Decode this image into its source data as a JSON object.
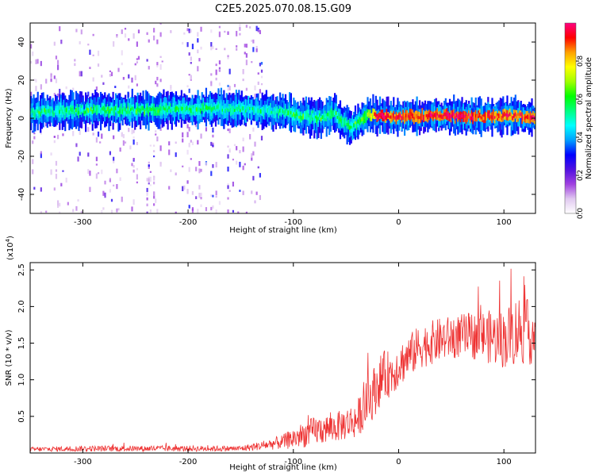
{
  "title": "C2E5.2025.070.08.15.G09",
  "chart_data": [
    {
      "type": "heatmap",
      "title": "C2E5.2025.070.08.15.G09",
      "xlabel": "Height of straight line (km)",
      "ylabel": "Frequency (Hz)",
      "xlim": [
        -350,
        130
      ],
      "ylim": [
        -50,
        50
      ],
      "x_ticks": [
        -300,
        -200,
        -100,
        0,
        100
      ],
      "y_ticks": [
        -40,
        -20,
        0,
        20,
        40
      ],
      "colorbar": {
        "label": "Normalized spectral amplitude",
        "range": [
          0,
          1
        ],
        "ticks": [
          "0.0",
          "0.2",
          "0.4",
          "0.6",
          "0.8"
        ],
        "colors": [
          "#ffffff",
          "#e0c8f0",
          "#a040e0",
          "#5010e0",
          "#0000ff",
          "#00a0ff",
          "#00ffff",
          "#00ff80",
          "#00ff00",
          "#a0ff00",
          "#ffff00",
          "#ffa000",
          "#ff0000",
          "#ff0080"
        ]
      },
      "ridge": {
        "description_points": [
          {
            "x": -350,
            "freq": 3,
            "amp": 0.45
          },
          {
            "x": -300,
            "freq": 4,
            "amp": 0.5
          },
          {
            "x": -250,
            "freq": 4,
            "amp": 0.5
          },
          {
            "x": -200,
            "freq": 5,
            "amp": 0.5
          },
          {
            "x": -150,
            "freq": 5,
            "amp": 0.45
          },
          {
            "x": -120,
            "freq": 4,
            "amp": 0.45
          },
          {
            "x": -100,
            "freq": 2,
            "amp": 0.5
          },
          {
            "x": -80,
            "freq": 0,
            "amp": 0.5
          },
          {
            "x": -60,
            "freq": 2,
            "amp": 0.5
          },
          {
            "x": -45,
            "freq": -5,
            "amp": 0.5
          },
          {
            "x": -30,
            "freq": 2,
            "amp": 0.6
          },
          {
            "x": -20,
            "freq": 1,
            "amp": 0.9
          },
          {
            "x": 0,
            "freq": 1,
            "amp": 0.85
          },
          {
            "x": 50,
            "freq": 1,
            "amp": 0.9
          },
          {
            "x": 100,
            "freq": 1,
            "amp": 0.85
          },
          {
            "x": 130,
            "freq": 1,
            "amp": 0.85
          }
        ],
        "noise_region_x": [
          -350,
          -130
        ]
      }
    },
    {
      "type": "line",
      "xlabel": "Height of straight line (km)",
      "ylabel": "SNR (10 * v/v)",
      "scale_label": "(x10",
      "scale_exponent": "4",
      "scale_suffix": ")",
      "xlim": [
        -350,
        130
      ],
      "ylim": [
        0,
        2.6
      ],
      "x_ticks": [
        -300,
        -200,
        -100,
        0,
        100
      ],
      "y_ticks": [
        "0.5",
        "1.0",
        "1.5",
        "2.0",
        "2.5"
      ],
      "color": "#ee3333",
      "series": [
        {
          "envelope": [
            {
              "x": -350,
              "mean": 0.05,
              "spread": 0.03
            },
            {
              "x": -300,
              "mean": 0.06,
              "spread": 0.04
            },
            {
              "x": -200,
              "mean": 0.06,
              "spread": 0.04
            },
            {
              "x": -150,
              "mean": 0.06,
              "spread": 0.04
            },
            {
              "x": -130,
              "mean": 0.1,
              "spread": 0.06
            },
            {
              "x": -110,
              "mean": 0.15,
              "spread": 0.1
            },
            {
              "x": -100,
              "mean": 0.2,
              "spread": 0.15
            },
            {
              "x": -80,
              "mean": 0.3,
              "spread": 0.2
            },
            {
              "x": -60,
              "mean": 0.35,
              "spread": 0.2
            },
            {
              "x": -40,
              "mean": 0.45,
              "spread": 0.25
            },
            {
              "x": -25,
              "mean": 0.8,
              "spread": 0.35
            },
            {
              "x": -15,
              "mean": 1.05,
              "spread": 0.35
            },
            {
              "x": -5,
              "mean": 1.1,
              "spread": 0.3
            },
            {
              "x": 0,
              "mean": 1.2,
              "spread": 0.3
            },
            {
              "x": 20,
              "mean": 1.45,
              "spread": 0.3
            },
            {
              "x": 40,
              "mean": 1.55,
              "spread": 0.3
            },
            {
              "x": 60,
              "mean": 1.6,
              "spread": 0.3
            },
            {
              "x": 80,
              "mean": 1.6,
              "spread": 0.35
            },
            {
              "x": 100,
              "mean": 1.55,
              "spread": 0.4
            },
            {
              "x": 115,
              "mean": 1.7,
              "spread": 0.5
            },
            {
              "x": 130,
              "mean": 1.6,
              "spread": 0.4
            }
          ]
        }
      ]
    }
  ]
}
